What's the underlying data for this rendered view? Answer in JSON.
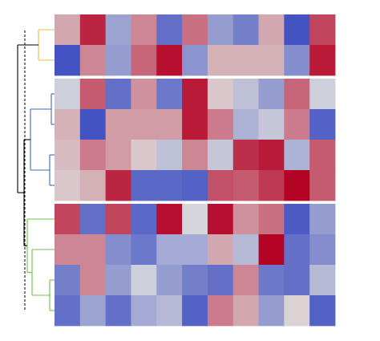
{
  "chart_data": {
    "type": "heatmap",
    "title": "",
    "xlabel": "",
    "ylabel": "",
    "legend": "none",
    "n_rows": 10,
    "n_cols": 11,
    "row_groups": [
      {
        "rows": [
          0,
          1
        ],
        "dendrogram_color": "#E8B84A"
      },
      {
        "rows": [
          2,
          3,
          4,
          5
        ],
        "dendrogram_color": "#3D6CC4"
      },
      {
        "rows": [
          6,
          7,
          8,
          9
        ],
        "dendrogram_color": "#6CC24A"
      }
    ],
    "colormap": {
      "low": "#3B4CC0",
      "mid": "#DDDDDD",
      "high": "#B40426",
      "range": [
        -1,
        1
      ]
    },
    "values": [
      [
        0.25,
        0.85,
        -0.4,
        0.4,
        -0.75,
        0.5,
        -0.45,
        -0.65,
        0.25,
        -0.95,
        0.7
      ],
      [
        -0.95,
        0.4,
        -0.45,
        0.55,
        0.95,
        -0.5,
        0.2,
        0.2,
        0.2,
        -0.55,
        0.9
      ],
      [
        -0.1,
        0.6,
        -0.75,
        0.35,
        -0.7,
        0.9,
        0.1,
        -0.2,
        -0.45,
        0.55,
        -0.1
      ],
      [
        0.2,
        -0.95,
        0.3,
        0.3,
        0.3,
        0.9,
        0.45,
        -0.3,
        -0.15,
        0.45,
        -0.85
      ],
      [
        0.15,
        0.45,
        0.3,
        0.1,
        -0.2,
        0.4,
        -0.15,
        0.8,
        0.9,
        -0.3,
        0.6
      ],
      [
        0.1,
        0.2,
        0.85,
        -0.8,
        -0.8,
        -0.85,
        0.65,
        0.6,
        0.75,
        1.0,
        0.6
      ],
      [
        0.7,
        -0.75,
        0.7,
        -0.8,
        0.95,
        -0.05,
        0.95,
        0.35,
        0.5,
        -0.9,
        -0.45
      ],
      [
        0.4,
        0.4,
        -0.55,
        -0.7,
        -0.35,
        -0.35,
        0.25,
        -0.25,
        1.0,
        -0.75,
        -0.55
      ],
      [
        -0.65,
        0.4,
        -0.45,
        -0.1,
        -0.45,
        -0.65,
        -0.75,
        0.4,
        -0.7,
        -0.75,
        -0.25
      ],
      [
        -0.75,
        -0.4,
        -0.75,
        -0.35,
        -0.25,
        -0.85,
        0.45,
        0.25,
        -0.45,
        0.05,
        -0.85
      ]
    ]
  }
}
